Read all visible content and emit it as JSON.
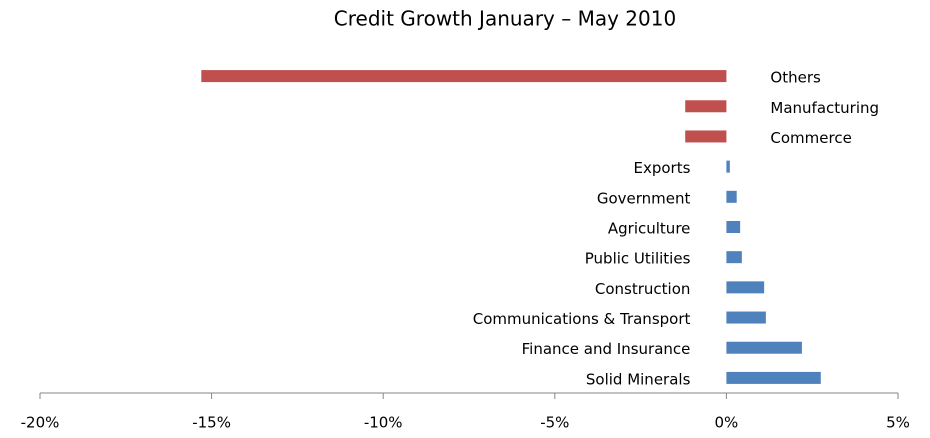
{
  "chart_data": {
    "type": "hbar",
    "title": "Credit Growth January – May 2010",
    "categories": [
      "Others",
      "Manufacturing",
      "Commerce",
      "Exports",
      "Government",
      "Agriculture",
      "Public Utilities",
      "Construction",
      "Communications & Transport",
      "Finance and Insurance",
      "Solid Minerals"
    ],
    "values": [
      -15.3,
      -1.2,
      -1.2,
      0.1,
      0.3,
      0.4,
      0.45,
      1.1,
      1.15,
      2.2,
      2.75
    ],
    "colors": [
      "#c0504d",
      "#c0504d",
      "#c0504d",
      "#4f81bd",
      "#4f81bd",
      "#4f81bd",
      "#4f81bd",
      "#4f81bd",
      "#4f81bd",
      "#4f81bd",
      "#4f81bd"
    ],
    "xlim": [
      -20,
      5
    ],
    "xticks": [
      {
        "value": -20,
        "label": "-20%"
      },
      {
        "value": -15,
        "label": "-15%"
      },
      {
        "value": -10,
        "label": "-10%"
      },
      {
        "value": -5,
        "label": "-5%"
      },
      {
        "value": 0,
        "label": "0%"
      },
      {
        "value": 5,
        "label": "5%"
      }
    ]
  }
}
